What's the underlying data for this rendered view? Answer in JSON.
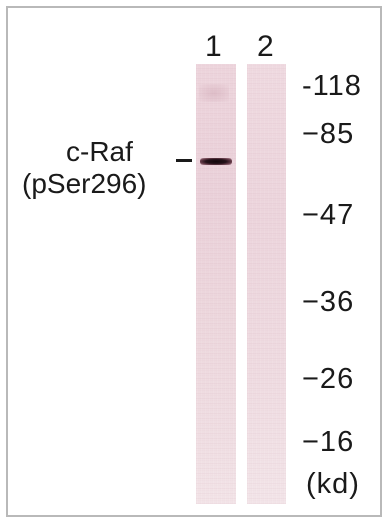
{
  "lanes": [
    {
      "label": "1"
    },
    {
      "label": "2"
    }
  ],
  "protein_label": {
    "line1": "c-Raf",
    "line2": "(pSer296)"
  },
  "markers": [
    {
      "label": "-118"
    },
    {
      "label": "−85"
    },
    {
      "label": "−47"
    },
    {
      "label": "−36"
    },
    {
      "label": "−26"
    },
    {
      "label": "−16"
    }
  ],
  "unit": "(kd)"
}
